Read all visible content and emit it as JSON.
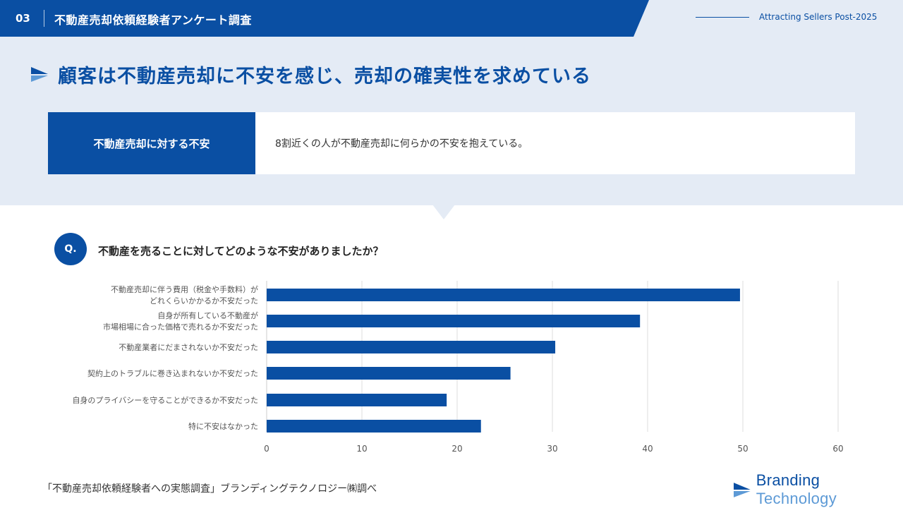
{
  "header": {
    "number": "03",
    "title": "不動産売却依頼経験者アンケート調査",
    "tagline": "Attracting Sellers Post-2025"
  },
  "main_title": "顧客は不動産売却に不安を感じ、売却の確実性を求めている",
  "summary": {
    "label": "不動産売却に対する不安",
    "text": "8割近くの人が不動産売却に何らかの不安を抱えている。"
  },
  "question": {
    "badge": "Q.",
    "text": "不動産を売ることに対してどのような不安がありましたか？"
  },
  "chart_data": {
    "type": "bar",
    "orientation": "horizontal",
    "categories": [
      [
        "不動産売却に伴う費用（税金や手数料）が",
        "どれくらいかかるか不安だった"
      ],
      [
        "自身が所有している不動産が",
        "市場相場に合った価格で売れるか不安だった"
      ],
      [
        "不動産業者にだまされないか不安だった"
      ],
      [
        "契約上のトラブルに巻き込まれないか不安だった"
      ],
      [
        "自身のプライバシーを守ることができるか不安だった"
      ],
      [
        "特に不安はなかった"
      ]
    ],
    "values": [
      49.7,
      39.2,
      30.3,
      25.6,
      18.9,
      22.5
    ],
    "xlim": [
      0,
      60
    ],
    "xticks": [
      0,
      10,
      20,
      30,
      40,
      50,
      60
    ],
    "grid": true,
    "bar_color": "#0a4fa3"
  },
  "footer": {
    "source": "「不動産売却依頼経験者への実態調査」ブランディングテクノロジー㈱調べ",
    "brand_word1": "Branding",
    "brand_word2": "Technology"
  },
  "colors": {
    "primary": "#0a4fa3",
    "light_band": "#e4ebf5",
    "accent_light": "#5d9ad6"
  }
}
